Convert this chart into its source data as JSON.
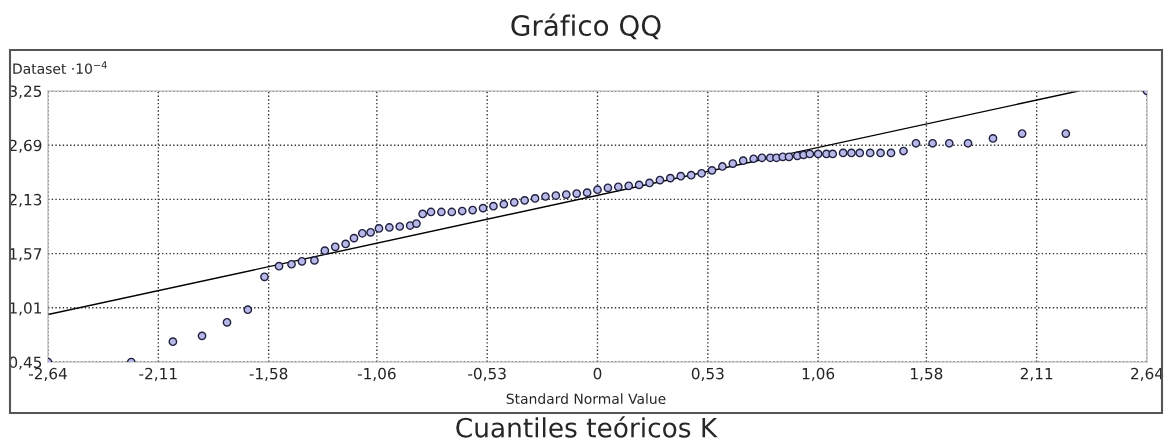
{
  "chart_data": {
    "type": "scatter",
    "title": "Gráfico QQ",
    "ylabel": "Dataset ·10$^{−4}$",
    "xlabel": "Standard Normal Value",
    "annotations": [
      "Cuantiles teóricos K"
    ],
    "series": [
      {
        "color": "#b8b8e8",
        "marker": "circle",
        "x": [
          -2.64,
          -2.24,
          -2.04,
          -1.9,
          -1.78,
          -1.68,
          -1.6,
          -1.53,
          -1.47,
          -1.42,
          -1.36,
          -1.31,
          -1.26,
          -1.21,
          -1.17,
          -1.13,
          -1.09,
          -1.05,
          -1.0,
          -0.95,
          -0.9,
          -0.87,
          -0.84,
          -0.8,
          -0.75,
          -0.7,
          -0.65,
          -0.6,
          -0.55,
          -0.5,
          -0.45,
          -0.4,
          -0.35,
          -0.3,
          -0.25,
          -0.2,
          -0.15,
          -0.1,
          -0.05,
          0,
          0.05,
          0.1,
          0.15,
          0.2,
          0.25,
          0.3,
          0.35,
          0.4,
          0.45,
          0.5,
          0.55,
          0.6,
          0.65,
          0.7,
          0.75,
          0.79,
          0.83,
          0.86,
          0.89,
          0.92,
          0.96,
          0.99,
          1.02,
          1.06,
          1.1,
          1.13,
          1.18,
          1.22,
          1.26,
          1.31,
          1.36,
          1.41,
          1.47,
          1.53,
          1.61,
          1.69,
          1.78,
          1.9,
          2.04,
          2.25,
          2.64
        ],
        "values": [
          0.45,
          0.45,
          0.66,
          0.72,
          0.86,
          0.99,
          1.33,
          1.44,
          1.46,
          1.49,
          1.5,
          1.6,
          1.64,
          1.67,
          1.73,
          1.78,
          1.79,
          1.83,
          1.84,
          1.85,
          1.86,
          1.88,
          1.98,
          2.0,
          2.0,
          2.0,
          2.01,
          2.02,
          2.04,
          2.06,
          2.08,
          2.1,
          2.12,
          2.14,
          2.16,
          2.17,
          2.18,
          2.19,
          2.2,
          2.23,
          2.25,
          2.26,
          2.27,
          2.28,
          2.3,
          2.33,
          2.35,
          2.37,
          2.38,
          2.4,
          2.43,
          2.47,
          2.5,
          2.53,
          2.55,
          2.56,
          2.56,
          2.56,
          2.57,
          2.57,
          2.58,
          2.59,
          2.6,
          2.6,
          2.6,
          2.6,
          2.61,
          2.61,
          2.61,
          2.61,
          2.61,
          2.61,
          2.63,
          2.71,
          2.71,
          2.71,
          2.71,
          2.76,
          2.81,
          2.81,
          3.25
        ]
      },
      {
        "type": "line",
        "color": "#000000",
        "x": [
          -2.64,
          2.31
        ],
        "values": [
          0.94,
          3.25
        ]
      }
    ],
    "xlim": [
      -2.64,
      2.64
    ],
    "ylim": [
      0.45,
      3.25
    ],
    "xticks": [
      {
        "value": -2.64,
        "label": "-2,64"
      },
      {
        "value": -2.11,
        "label": "-2,11"
      },
      {
        "value": -1.58,
        "label": "-1,58"
      },
      {
        "value": -1.06,
        "label": "-1,06"
      },
      {
        "value": -0.53,
        "label": "-0,53"
      },
      0,
      {
        "value": 0.53,
        "label": "0,53"
      },
      {
        "value": 1.06,
        "label": "1,06"
      },
      {
        "value": 1.58,
        "label": "1,58"
      },
      {
        "value": 2.11,
        "label": "2,11"
      },
      {
        "value": 2.64,
        "label": "2,64"
      }
    ],
    "yticks": [
      {
        "value": 0.45,
        "label": "0,45"
      },
      {
        "value": 1.01,
        "label": "1,01"
      },
      {
        "value": 1.57,
        "label": "1,57"
      },
      {
        "value": 2.13,
        "label": "2,13"
      },
      {
        "value": 2.69,
        "label": "2,69"
      },
      {
        "value": 3.25,
        "label": "3,25"
      }
    ],
    "grid": true
  }
}
